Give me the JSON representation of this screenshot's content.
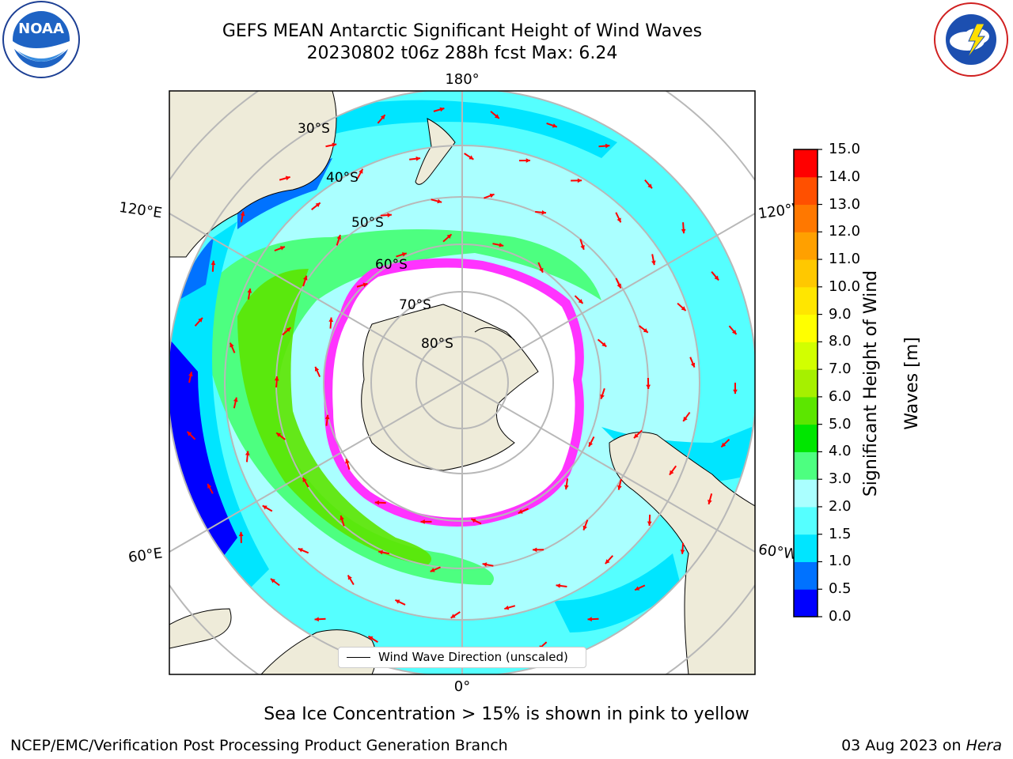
{
  "title": {
    "line1": "GEFS MEAN Antarctic Significant Height of Wind Waves",
    "line2": "20230802 t06z 288h fcst   Max: 6.24"
  },
  "logos": {
    "left": {
      "name": "noaa-logo",
      "text": "NOAA",
      "ring_text": "NATIONAL OCEANIC AND ATMOSPHERIC ADMINISTRATION · U.S. DEPARTMENT OF COMMERCE"
    },
    "right": {
      "name": "nws-logo",
      "ring_text": "NATIONAL WEATHER SERVICE"
    }
  },
  "map": {
    "projection": "south-polar-stereographic",
    "longitude_labels": {
      "top": "180°",
      "bottom": "0°",
      "upper_left": "120°E",
      "upper_right": "120°W",
      "lower_left": "60°E",
      "lower_right": "60°W"
    },
    "latitude_labels": [
      "30°S",
      "40°S",
      "50°S",
      "60°S",
      "70°S",
      "80°S"
    ],
    "legend": "Wind Wave Direction (unscaled)",
    "colors": {
      "land": "#eeebd9",
      "sea_ice_edge": [
        "#ff33ff",
        "#ffcc33"
      ],
      "arrow": "#ff0000",
      "grid": "#b8b8b8"
    }
  },
  "colorbar": {
    "label": "Significant Height of Wind Waves [m]",
    "label_line1": "Significant Height of Wind",
    "label_line2": "Waves [m]",
    "ticks": [
      "0.0",
      "0.5",
      "1.0",
      "1.5",
      "2.0",
      "3.0",
      "4.0",
      "5.0",
      "6.0",
      "7.0",
      "8.0",
      "9.0",
      "10.0",
      "11.0",
      "12.0",
      "13.0",
      "14.0",
      "15.0"
    ],
    "colors": [
      "#0000ff",
      "#0072ff",
      "#00e5ff",
      "#55ffff",
      "#aaffff",
      "#4dff80",
      "#00e600",
      "#5ce600",
      "#a6f000",
      "#d2ff00",
      "#ffff00",
      "#ffe600",
      "#ffc800",
      "#ffa000",
      "#ff7800",
      "#ff5000",
      "#ff0000"
    ]
  },
  "notes": {
    "sea_ice": "Sea Ice Concentration > 15% is shown in pink to yellow",
    "footer_left": "NCEP/EMC/Verification Post Processing Product Generation Branch",
    "footer_right_date": "03 Aug 2023 on ",
    "footer_right_host": "Hera"
  }
}
